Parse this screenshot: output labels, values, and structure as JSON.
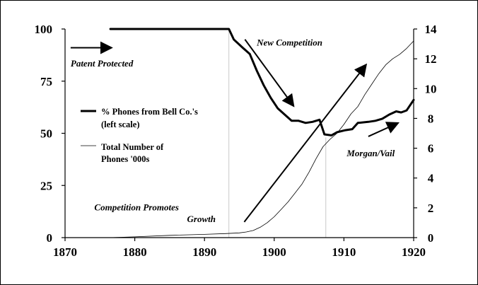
{
  "chart_data": {
    "type": "line",
    "x_ticks": [
      "1870",
      "1880",
      "1890",
      "1900",
      "1910",
      "1920"
    ],
    "xlim": [
      1870,
      1920
    ],
    "left_axis": {
      "ylim": [
        0,
        100
      ],
      "ticks": [
        "0",
        "25",
        "50",
        "75",
        "100"
      ]
    },
    "right_axis": {
      "ylim": [
        0,
        14
      ],
      "ticks": [
        "0",
        "2",
        "4",
        "6",
        "8",
        "10",
        "12",
        "14"
      ]
    },
    "series": [
      {
        "name": "% Phones from Bell Co.'s (left scale)",
        "name_lines": [
          "% Phones from Bell Co.'s",
          "(left scale)"
        ],
        "axis": "left",
        "style": "thick",
        "points": [
          [
            1876.5,
            100
          ],
          [
            1893.5,
            100
          ],
          [
            1894.2,
            95
          ],
          [
            1895.5,
            91
          ],
          [
            1896.5,
            88
          ],
          [
            1897.5,
            80
          ],
          [
            1898.5,
            73
          ],
          [
            1899.5,
            67
          ],
          [
            1900.5,
            62
          ],
          [
            1901.5,
            59
          ],
          [
            1902.5,
            56
          ],
          [
            1903.5,
            56
          ],
          [
            1904.5,
            55
          ],
          [
            1905.5,
            55.5
          ],
          [
            1906.5,
            56.5
          ],
          [
            1907.2,
            49.5
          ],
          [
            1908.2,
            49
          ],
          [
            1909,
            50.5
          ],
          [
            1910.2,
            51.5
          ],
          [
            1911.2,
            52
          ],
          [
            1912,
            55
          ],
          [
            1913.5,
            55.5
          ],
          [
            1914.5,
            56
          ],
          [
            1915.5,
            57
          ],
          [
            1916.5,
            59
          ],
          [
            1917.5,
            60.5
          ],
          [
            1918.2,
            60
          ],
          [
            1919,
            61
          ],
          [
            1920,
            66
          ]
        ]
      },
      {
        "name": "Total Number of Phones '000s",
        "name_lines": [
          "Total Number of",
          "Phones '000s"
        ],
        "axis": "right",
        "style": "thin",
        "points": [
          [
            1876.5,
            0
          ],
          [
            1880,
            0.05
          ],
          [
            1885,
            0.15
          ],
          [
            1890,
            0.22
          ],
          [
            1893,
            0.27
          ],
          [
            1895,
            0.32
          ],
          [
            1896,
            0.38
          ],
          [
            1897,
            0.48
          ],
          [
            1898,
            0.7
          ],
          [
            1899,
            1.0
          ],
          [
            1900,
            1.4
          ],
          [
            1901,
            1.9
          ],
          [
            1902,
            2.4
          ],
          [
            1903,
            3.0
          ],
          [
            1904,
            3.6
          ],
          [
            1905,
            4.4
          ],
          [
            1906,
            5.3
          ],
          [
            1907,
            6.1
          ],
          [
            1908,
            6.6
          ],
          [
            1909,
            7.0
          ],
          [
            1910,
            7.6
          ],
          [
            1911,
            8.3
          ],
          [
            1912,
            8.8
          ],
          [
            1913,
            9.6
          ],
          [
            1914,
            10.3
          ],
          [
            1915,
            11.0
          ],
          [
            1916,
            11.6
          ],
          [
            1917,
            12.0
          ],
          [
            1918,
            12.3
          ],
          [
            1919,
            12.7
          ],
          [
            1920,
            13.2
          ]
        ]
      }
    ],
    "reference_lines": [
      {
        "x": 1893.5,
        "axis": "left",
        "y_top": 100
      },
      {
        "x": 1907.4,
        "axis": "left",
        "y_top": 48
      }
    ],
    "annotations": [
      {
        "text": "Patent Protected",
        "x": 1870.8,
        "y": 82,
        "axis": "left"
      },
      {
        "text": "New Competition",
        "x": 1897.5,
        "y": 92,
        "axis": "left"
      },
      {
        "text": "Morgan/Vail",
        "x": 1910.4,
        "y": 39,
        "axis": "left"
      },
      {
        "text": "Competition Promotes",
        "x": 1874.2,
        "y": 13,
        "axis": "left"
      },
      {
        "text": "Growth",
        "x": 1887.5,
        "y": 7.5,
        "axis": "left"
      }
    ],
    "arrows": [
      {
        "from": [
          1870.8,
          91
        ],
        "to": [
          1876.7,
          91
        ],
        "axis": "left"
      },
      {
        "from": [
          1895.8,
          95
        ],
        "to": [
          1902.8,
          63
        ],
        "axis": "left"
      },
      {
        "from": [
          1895.7,
          7.5
        ],
        "to": [
          1913.2,
          83
        ],
        "axis": "left"
      },
      {
        "from": [
          1913.5,
          48.5
        ],
        "to": [
          1917.8,
          55
        ],
        "axis": "left"
      }
    ],
    "grid": false,
    "legend_position": "middle-left"
  }
}
